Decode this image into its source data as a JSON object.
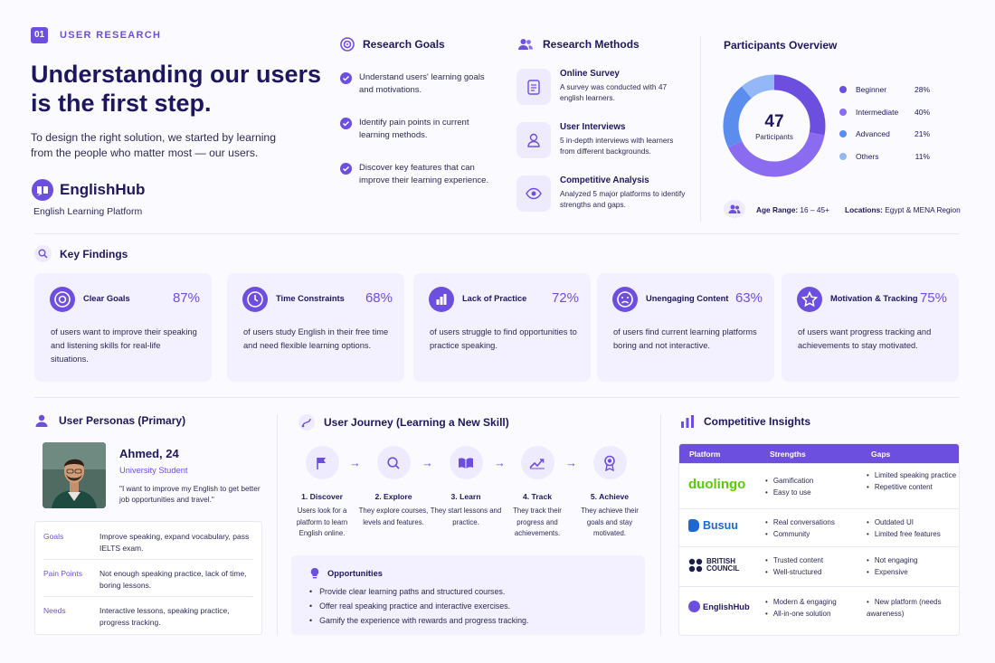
{
  "section": {
    "number": "01",
    "tag": "USER RESEARCH"
  },
  "hero": {
    "title": "Understanding our users is the first step.",
    "description": "To design the right solution, we started by learning from the people who matter most — our users.",
    "brand_name": "EnglishHub",
    "brand_subtitle": "English Learning Platform"
  },
  "goals": {
    "title": "Research Goals",
    "items": [
      "Understand users' learning goals and motivations.",
      "Identify pain points in current learning methods.",
      "Discover key features that can improve their learning experience."
    ]
  },
  "methods": {
    "title": "Research Methods",
    "items": [
      {
        "title": "Online Survey",
        "desc": "A survey was conducted with 47 english learners.",
        "icon": "clipboard-icon"
      },
      {
        "title": "User Interviews",
        "desc": "5 in-depth interviews with learners from different backgrounds.",
        "icon": "user-icon"
      },
      {
        "title": "Competitive Analysis",
        "desc": "Analyzed 5 major platforms to identify strengths and gaps.",
        "icon": "eye-icon"
      }
    ]
  },
  "participants": {
    "title": "Participants Overview",
    "total": "47",
    "total_label": "Participants",
    "age_label": "Age Range:",
    "age_value": "16 – 45+",
    "location_label": "Locations:",
    "location_value": "Egypt & MENA Region"
  },
  "chart_data": {
    "type": "pie",
    "categories": [
      "Beginner",
      "Intermediate",
      "Advanced",
      "Others"
    ],
    "values": [
      28,
      40,
      21,
      11
    ],
    "labels": [
      "28%",
      "40%",
      "21%",
      "11%"
    ],
    "colors": [
      "#6d4fe0",
      "#8b6cf0",
      "#5b8def",
      "#94b7f7"
    ]
  },
  "findings": {
    "title": "Key Findings",
    "cards": [
      {
        "title": "Clear Goals",
        "pct": "87%",
        "desc": "of users want to improve their speaking and listening skills for real-life situations.",
        "icon": "target-icon"
      },
      {
        "title": "Time Constraints",
        "pct": "68%",
        "desc": "of users study English in their free time and need flexible learning options.",
        "icon": "clock-icon"
      },
      {
        "title": "Lack of Practice",
        "pct": "72%",
        "desc": "of users struggle to find opportunities to practice speaking.",
        "icon": "bar-chart-icon"
      },
      {
        "title": "Unengaging Content",
        "pct": "63%",
        "desc": "of users find current learning platforms boring and not interactive.",
        "icon": "sad-face-icon"
      },
      {
        "title": "Motivation & Tracking",
        "pct": "75%",
        "desc": "of users want progress tracking and achievements to stay motivated.",
        "icon": "star-icon"
      }
    ]
  },
  "personas": {
    "title": "User Personas (Primary)",
    "name": "Ahmed, 24",
    "role": "University Student",
    "quote": "\"I want to improve my English to get better job opportunities and travel.\"",
    "rows": [
      {
        "label": "Goals",
        "text": "Improve speaking, expand vocabulary, pass IELTS exam."
      },
      {
        "label": "Pain Points",
        "text": "Not enough speaking practice, lack of time, boring lessons."
      },
      {
        "label": "Needs",
        "text": "Interactive lessons, speaking practice, progress tracking."
      }
    ]
  },
  "journey": {
    "title": "User Journey (Learning a New Skill)",
    "steps": [
      {
        "title": "1. Discover",
        "desc": "Users look for a platform to learn English online.",
        "icon": "flag-icon"
      },
      {
        "title": "2. Explore",
        "desc": "They explore courses, levels and features.",
        "icon": "search-icon"
      },
      {
        "title": "3. Learn",
        "desc": "They start lessons and practice.",
        "icon": "book-icon"
      },
      {
        "title": "4. Track",
        "desc": "They track their progress and achievements.",
        "icon": "trend-icon"
      },
      {
        "title": "5. Achieve",
        "desc": "They achieve their goals and stay motivated.",
        "icon": "award-icon"
      }
    ],
    "opportunities_title": "Opportunities",
    "opportunities": [
      "Provide clear learning paths and structured courses.",
      "Offer real speaking practice and interactive exercises.",
      "Gamify the experience with rewards and progress tracking."
    ]
  },
  "competitive": {
    "title": "Competitive Insights",
    "headers": [
      "Platform",
      "Strengths",
      "Gaps"
    ],
    "rows": [
      {
        "platform": "duolingo",
        "strengths": [
          "Gamification",
          "Easy to use"
        ],
        "gaps": [
          "Limited speaking practice",
          "Repetitive content"
        ]
      },
      {
        "platform": "Busuu",
        "strengths": [
          "Real conversations",
          "Community"
        ],
        "gaps": [
          "Outdated UI",
          "Limited free features"
        ]
      },
      {
        "platform": "BRITISH COUNCIL",
        "strengths": [
          "Trusted content",
          "Well-structured"
        ],
        "gaps": [
          "Not engaging",
          "Expensive"
        ]
      },
      {
        "platform": "EnglishHub",
        "strengths": [
          "Modern & engaging",
          "All-in-one solution"
        ],
        "gaps": [
          "New platform (needs awareness)"
        ]
      }
    ]
  }
}
